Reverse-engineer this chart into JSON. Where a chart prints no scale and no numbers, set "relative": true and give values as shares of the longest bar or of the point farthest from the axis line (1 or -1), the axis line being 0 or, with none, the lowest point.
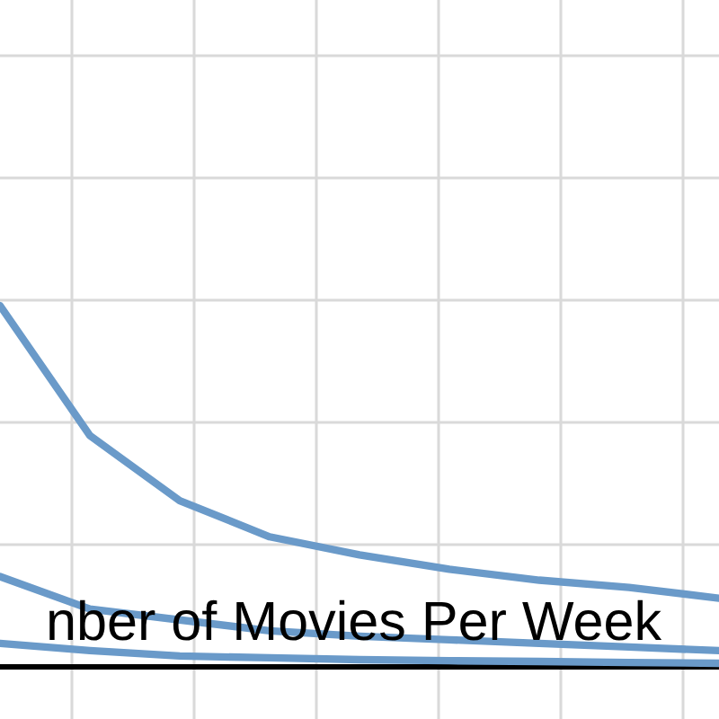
{
  "chart_data": {
    "type": "line",
    "relative": true,
    "xlabel": "nber of Movies Per Week",
    "grid": true,
    "line_style": "solid",
    "categories": [
      null,
      null,
      null,
      null,
      null,
      null,
      null,
      null,
      null
    ],
    "series": [
      {
        "color": "#6a9ac9",
        "values": [
          1,
          0.64,
          0.46,
          0.36,
          0.31,
          0.27,
          0.24,
          0.22,
          0.19
        ]
      },
      {
        "color": "#6a9ac9",
        "values": [
          0.25,
          0.16,
          0.13,
          0.1,
          0.085,
          0.075,
          0.065,
          0.055,
          0.045
        ]
      },
      {
        "color": "#6a9ac9",
        "values": [
          0.065,
          0.045,
          0.03,
          0.025,
          0.02,
          0.017,
          0.015,
          0.012,
          0.01
        ]
      }
    ]
  }
}
